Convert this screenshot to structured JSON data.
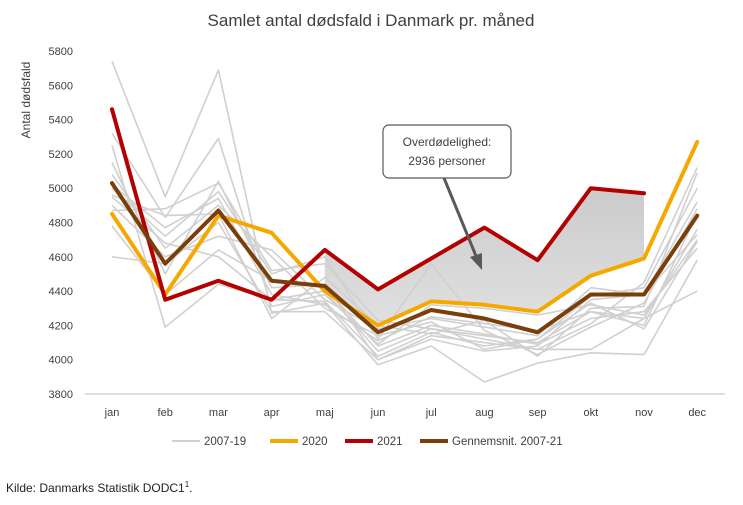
{
  "chart_data": {
    "type": "line",
    "title": "Samlet antal dødsfald i Danmark pr. måned",
    "ylabel": "Antal dødsfald",
    "xlabel": "",
    "categories": [
      "jan",
      "feb",
      "mar",
      "apr",
      "maj",
      "jun",
      "jul",
      "aug",
      "sep",
      "okt",
      "nov",
      "dec"
    ],
    "ylim": [
      3800,
      5800
    ],
    "yticks": [
      "3800",
      "4000",
      "4200",
      "4400",
      "4600",
      "4800",
      "5000",
      "5200",
      "5400",
      "5600",
      "5800"
    ],
    "grid": false,
    "legend_position": "bottom",
    "background_years_label": "2007-19",
    "background_years": [
      [
        5740,
        4950,
        5690,
        4270,
        4330,
        3970,
        4080,
        3870,
        3980,
        4040,
        4030,
        4580
      ],
      [
        5320,
        4830,
        5290,
        4310,
        4380,
        4090,
        4320,
        4300,
        4260,
        4320,
        4260,
        4700
      ],
      [
        5250,
        4190,
        4440,
        4350,
        4400,
        4050,
        4180,
        4140,
        4100,
        4280,
        4200,
        4850
      ],
      [
        5150,
        4500,
        5040,
        4420,
        4440,
        4000,
        4140,
        4100,
        4060,
        4060,
        4240,
        4760
      ],
      [
        5080,
        4650,
        4900,
        4600,
        4300,
        4140,
        4220,
        4060,
        4120,
        4370,
        4420,
        5000
      ],
      [
        5000,
        4720,
        4980,
        4500,
        4600,
        4120,
        4560,
        4170,
        4030,
        4190,
        4330,
        4880
      ],
      [
        4960,
        4840,
        4850,
        4240,
        4480,
        4200,
        4150,
        4230,
        4020,
        4300,
        4310,
        5090
      ],
      [
        4900,
        4600,
        4720,
        4640,
        4350,
        4180,
        4240,
        4190,
        4140,
        4420,
        4380,
        4730
      ],
      [
        4780,
        4380,
        4640,
        4460,
        4420,
        4080,
        4200,
        4150,
        4090,
        4240,
        4280,
        4650
      ],
      [
        4600,
        4560,
        4800,
        4280,
        4280,
        4000,
        4120,
        4050,
        4080,
        4350,
        4380,
        4920
      ],
      [
        5020,
        4770,
        4940,
        4380,
        4320,
        4110,
        4250,
        4210,
        4170,
        4280,
        4240,
        4400
      ],
      [
        4870,
        4880,
        5030,
        4520,
        4560,
        4230,
        4180,
        4120,
        4060,
        4210,
        4450,
        5120
      ],
      [
        4950,
        4680,
        4600,
        4350,
        4340,
        4020,
        4160,
        4080,
        4120,
        4330,
        4180,
        4690
      ]
    ],
    "series": [
      {
        "name": "2020",
        "color": "#f5a800",
        "values": [
          4850,
          4380,
          4840,
          4740,
          4400,
          4200,
          4340,
          4320,
          4280,
          4490,
          4590,
          5270
        ]
      },
      {
        "name": "2021",
        "color": "#b30000",
        "values": [
          5460,
          4350,
          4460,
          4350,
          4640,
          4410,
          4590,
          4770,
          4580,
          5000,
          4970,
          null
        ]
      },
      {
        "name": "Gennemsnit. 2007-21",
        "color": "#7a3e0a",
        "values": [
          5030,
          4560,
          4870,
          4460,
          4430,
          4160,
          4290,
          4240,
          4160,
          4380,
          4380,
          4840
        ]
      }
    ],
    "shaded_region": {
      "from_index": 4,
      "to_index": 10,
      "color": "#c8c8c8"
    },
    "annotation": {
      "line1": "Overdødelighed:",
      "line2": "2936 personer"
    }
  },
  "source": {
    "text": "Kilde: Danmarks Statistik DODC1",
    "superscript": "1",
    "suffix": "."
  }
}
